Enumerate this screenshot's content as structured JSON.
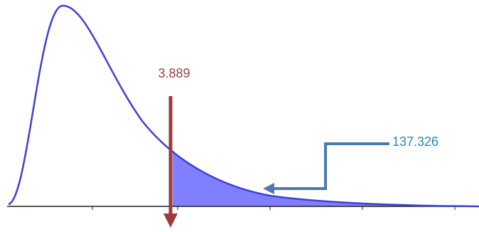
{
  "labels": {
    "critical_value": "3.889",
    "test_statistic": "137.326"
  }
}
